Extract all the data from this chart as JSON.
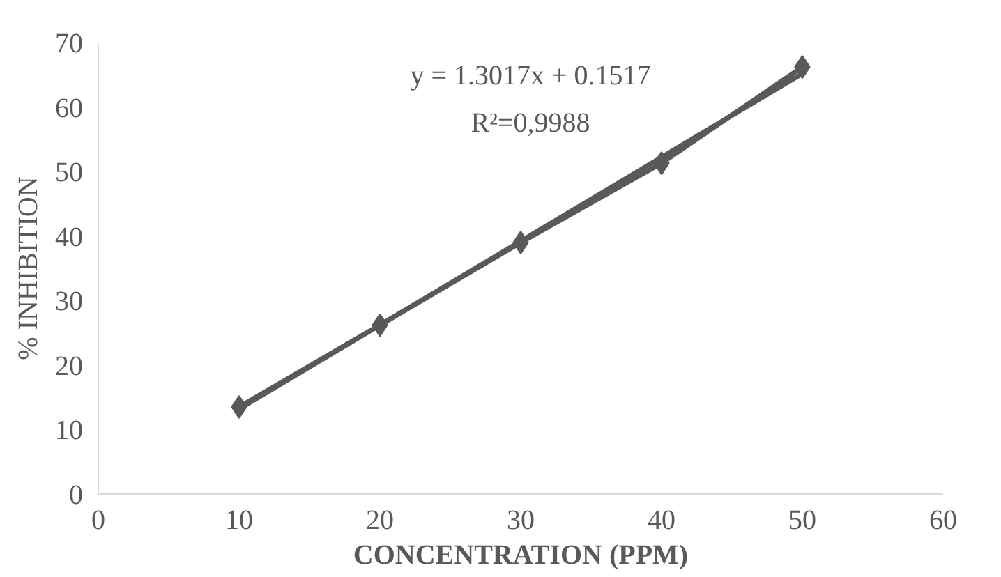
{
  "chart_data": {
    "type": "line",
    "xlabel": "CONCENTRATION (PPM)",
    "ylabel": "% INHIBITION",
    "x": [
      10,
      20,
      30,
      40,
      50
    ],
    "series": [
      {
        "color": "#595959",
        "marker": "diamond",
        "values": [
          13.5,
          26.2,
          39.0,
          51.3,
          66.2
        ]
      },
      {
        "type": "line",
        "color": "#595959",
        "marker": "none",
        "x": [
          10,
          50
        ],
        "values": [
          13.2,
          65.2
        ]
      }
    ],
    "annotations": [
      "y = 1.3017x + 0.1517",
      "R²=0,9988"
    ],
    "xlim": [
      0,
      60
    ],
    "xticks": [
      0,
      10,
      20,
      30,
      40,
      50,
      60
    ],
    "ylim": [
      0,
      70
    ],
    "yticks": [
      0,
      10,
      20,
      30,
      40,
      50,
      60,
      70
    ],
    "grid": false
  }
}
